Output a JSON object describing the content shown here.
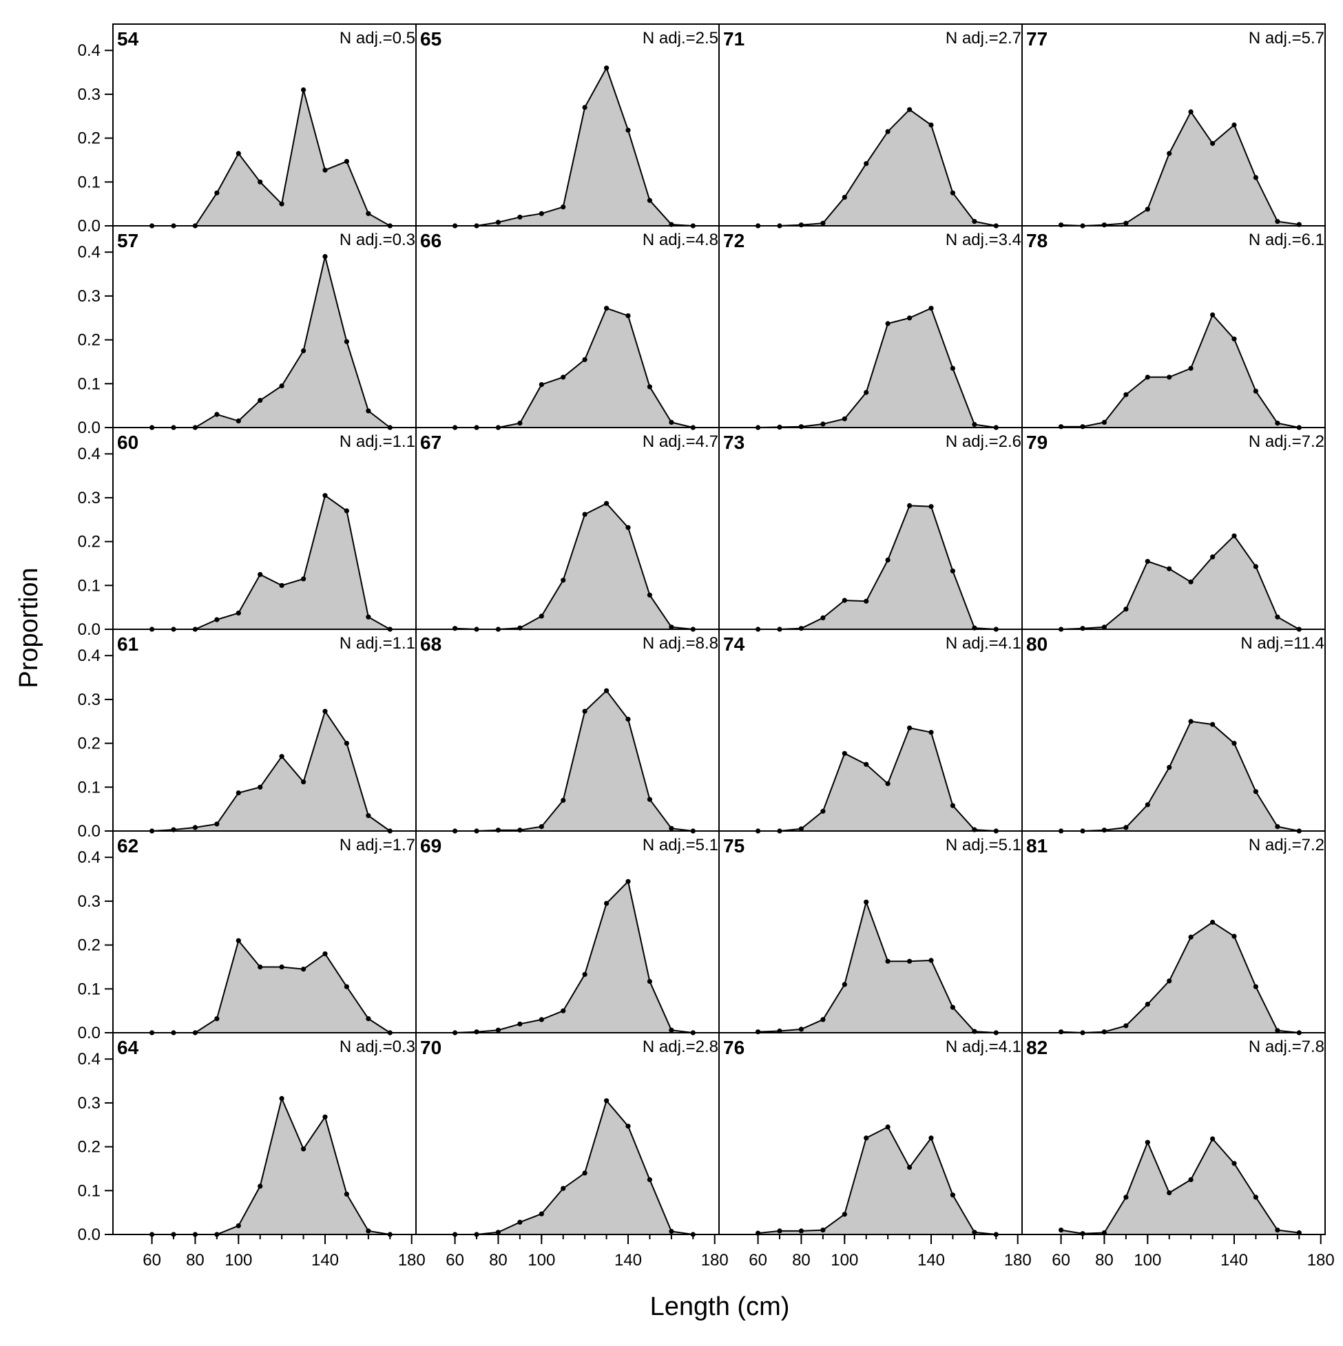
{
  "chart_data": {
    "type": "area",
    "xlabel": "Length (cm)",
    "ylabel": "Proportion",
    "xlim": [
      42,
      182
    ],
    "ylim": [
      0,
      0.46
    ],
    "x_ticks": [
      60,
      80,
      100,
      140,
      180
    ],
    "y_ticks": [
      0.0,
      0.1,
      0.2,
      0.3,
      0.4
    ],
    "y_tick_labels": [
      "0.0",
      "0.1",
      "0.2",
      "0.3",
      "0.4"
    ],
    "x": [
      60,
      70,
      80,
      90,
      100,
      110,
      120,
      130,
      140,
      150,
      160,
      170
    ],
    "grid": false,
    "layout": {
      "columns": 4,
      "rows": 6,
      "order": "column-major"
    },
    "fill_color": "#c8c8c8",
    "line_color": "#000000",
    "panels": [
      {
        "label": "54",
        "nadj": "N adj.=0.5",
        "values": [
          0,
          0,
          0,
          0.075,
          0.165,
          0.1,
          0.05,
          0.31,
          0.127,
          0.147,
          0.028,
          0
        ]
      },
      {
        "label": "57",
        "nadj": "N adj.=0.3",
        "values": [
          0,
          0,
          0,
          0.03,
          0.015,
          0.062,
          0.095,
          0.175,
          0.39,
          0.196,
          0.038,
          0
        ]
      },
      {
        "label": "60",
        "nadj": "N adj.=1.1",
        "values": [
          0,
          0,
          0,
          0.022,
          0.037,
          0.125,
          0.1,
          0.115,
          0.305,
          0.27,
          0.028,
          0
        ]
      },
      {
        "label": "61",
        "nadj": "N adj.=1.1",
        "values": [
          0,
          0.003,
          0.008,
          0.016,
          0.087,
          0.1,
          0.17,
          0.112,
          0.273,
          0.2,
          0.035,
          0
        ]
      },
      {
        "label": "62",
        "nadj": "N adj.=1.7",
        "values": [
          0,
          0,
          0,
          0.032,
          0.21,
          0.15,
          0.15,
          0.145,
          0.18,
          0.105,
          0.032,
          0
        ]
      },
      {
        "label": "64",
        "nadj": "N adj.=0.3",
        "values": [
          0,
          0,
          0,
          0,
          0.02,
          0.11,
          0.31,
          0.195,
          0.268,
          0.092,
          0.008,
          0
        ]
      },
      {
        "label": "65",
        "nadj": "N adj.=2.5",
        "values": [
          0,
          0,
          0.008,
          0.02,
          0.028,
          0.043,
          0.27,
          0.36,
          0.218,
          0.058,
          0.003,
          0
        ]
      },
      {
        "label": "66",
        "nadj": "N adj.=4.8",
        "values": [
          0,
          0,
          0,
          0.01,
          0.098,
          0.115,
          0.155,
          0.272,
          0.255,
          0.093,
          0.012,
          0
        ]
      },
      {
        "label": "67",
        "nadj": "N adj.=4.7",
        "values": [
          0.002,
          0,
          0,
          0.003,
          0.03,
          0.112,
          0.262,
          0.287,
          0.232,
          0.078,
          0.005,
          0
        ]
      },
      {
        "label": "68",
        "nadj": "N adj.=8.8",
        "values": [
          0,
          0,
          0.002,
          0.002,
          0.01,
          0.07,
          0.273,
          0.32,
          0.255,
          0.072,
          0.006,
          0
        ]
      },
      {
        "label": "69",
        "nadj": "N adj.=5.1",
        "values": [
          0,
          0.002,
          0.006,
          0.02,
          0.03,
          0.05,
          0.133,
          0.295,
          0.345,
          0.117,
          0.006,
          0
        ]
      },
      {
        "label": "70",
        "nadj": "N adj.=2.8",
        "values": [
          0,
          0,
          0.005,
          0.028,
          0.047,
          0.105,
          0.14,
          0.305,
          0.247,
          0.125,
          0.007,
          0
        ]
      },
      {
        "label": "71",
        "nadj": "N adj.=2.7",
        "values": [
          0,
          0,
          0.002,
          0.006,
          0.065,
          0.142,
          0.215,
          0.265,
          0.23,
          0.075,
          0.01,
          0
        ]
      },
      {
        "label": "72",
        "nadj": "N adj.=3.4",
        "values": [
          0,
          0.001,
          0.002,
          0.008,
          0.02,
          0.08,
          0.237,
          0.25,
          0.272,
          0.135,
          0.007,
          0
        ]
      },
      {
        "label": "73",
        "nadj": "N adj.=2.6",
        "values": [
          0,
          0,
          0.002,
          0.026,
          0.066,
          0.064,
          0.158,
          0.282,
          0.28,
          0.133,
          0.003,
          0
        ]
      },
      {
        "label": "74",
        "nadj": "N adj.=4.1",
        "values": [
          0,
          0,
          0.005,
          0.045,
          0.177,
          0.152,
          0.108,
          0.235,
          0.225,
          0.058,
          0.003,
          0
        ]
      },
      {
        "label": "75",
        "nadj": "N adj.=5.1",
        "values": [
          0.002,
          0.004,
          0.008,
          0.03,
          0.11,
          0.298,
          0.163,
          0.163,
          0.165,
          0.058,
          0.003,
          0
        ]
      },
      {
        "label": "76",
        "nadj": "N adj.=4.1",
        "values": [
          0.003,
          0.008,
          0.008,
          0.01,
          0.046,
          0.22,
          0.245,
          0.153,
          0.22,
          0.09,
          0.005,
          0
        ]
      },
      {
        "label": "77",
        "nadj": "N adj.=5.7",
        "values": [
          0.002,
          0,
          0.002,
          0.006,
          0.038,
          0.165,
          0.26,
          0.188,
          0.23,
          0.11,
          0.01,
          0.003
        ]
      },
      {
        "label": "78",
        "nadj": "N adj.=6.1",
        "values": [
          0.002,
          0.002,
          0.012,
          0.075,
          0.115,
          0.115,
          0.135,
          0.257,
          0.202,
          0.083,
          0.01,
          0
        ]
      },
      {
        "label": "79",
        "nadj": "N adj.=7.2",
        "values": [
          0,
          0.002,
          0.005,
          0.046,
          0.155,
          0.138,
          0.108,
          0.165,
          0.213,
          0.143,
          0.028,
          0
        ]
      },
      {
        "label": "80",
        "nadj": "N adj.=11.4",
        "values": [
          0,
          0,
          0.002,
          0.008,
          0.06,
          0.145,
          0.25,
          0.243,
          0.2,
          0.09,
          0.01,
          0
        ]
      },
      {
        "label": "81",
        "nadj": "N adj.=7.2",
        "values": [
          0.002,
          0,
          0.002,
          0.016,
          0.065,
          0.118,
          0.218,
          0.252,
          0.22,
          0.105,
          0.005,
          0
        ]
      },
      {
        "label": "82",
        "nadj": "N adj.=7.8",
        "values": [
          0.01,
          0.002,
          0.004,
          0.085,
          0.21,
          0.095,
          0.125,
          0.218,
          0.162,
          0.085,
          0.01,
          0.004
        ]
      }
    ]
  }
}
